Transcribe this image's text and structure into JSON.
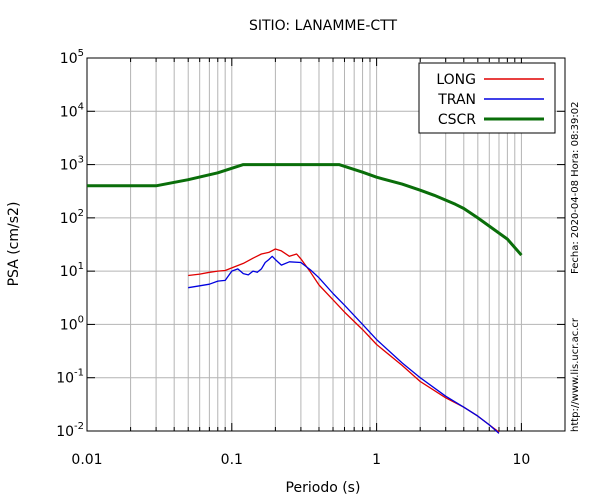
{
  "chart_data": {
    "type": "line",
    "title": "SITIO: LANAMME-CTT",
    "xlabel": "Periodo (s)",
    "ylabel": "PSA (cm/s2)",
    "xscale": "log",
    "yscale": "log",
    "xlim": [
      0.01,
      20
    ],
    "ylim": [
      0.01,
      100000
    ],
    "x_tick_labels": [
      "0.01",
      "0.1",
      "1",
      "10"
    ],
    "y_tick_labels": [
      {
        "base": "10",
        "exp": "5"
      },
      {
        "base": "10",
        "exp": "4"
      },
      {
        "base": "10",
        "exp": "3"
      },
      {
        "base": "10",
        "exp": "2"
      },
      {
        "base": "10",
        "exp": "1"
      },
      {
        "base": "10",
        "exp": "0"
      },
      {
        "base": "10",
        "exp": "-1"
      },
      {
        "base": "10",
        "exp": "-2"
      }
    ],
    "grid": true,
    "legend_position": "top-right",
    "series": [
      {
        "name": "LONG",
        "color": "#e00000",
        "x": [
          0.05,
          0.06,
          0.07,
          0.08,
          0.09,
          0.1,
          0.12,
          0.14,
          0.16,
          0.18,
          0.2,
          0.22,
          0.25,
          0.28,
          0.3,
          0.35,
          0.4,
          0.5,
          0.6,
          0.8,
          1.0,
          1.5,
          2.0,
          3.0,
          4.0,
          5.0,
          6.0,
          7.0
        ],
        "y": [
          8.3,
          8.8,
          9.5,
          10.0,
          10.3,
          11.5,
          14.0,
          17.5,
          21.0,
          22.5,
          26.0,
          24.0,
          19.0,
          21.0,
          17.0,
          9.5,
          5.5,
          2.9,
          1.7,
          0.8,
          0.42,
          0.17,
          0.085,
          0.042,
          0.028,
          0.019,
          0.013,
          0.0095
        ]
      },
      {
        "name": "TRAN",
        "color": "#0000e0",
        "x": [
          0.05,
          0.06,
          0.07,
          0.08,
          0.09,
          0.1,
          0.11,
          0.12,
          0.13,
          0.14,
          0.15,
          0.16,
          0.17,
          0.18,
          0.19,
          0.2,
          0.22,
          0.25,
          0.3,
          0.35,
          0.4,
          0.5,
          0.6,
          0.8,
          1.0,
          1.5,
          2.0,
          3.0,
          4.0,
          5.0,
          6.0,
          7.0
        ],
        "y": [
          4.9,
          5.3,
          5.7,
          6.5,
          6.7,
          10.0,
          11.0,
          9.0,
          8.5,
          10.0,
          9.5,
          11.0,
          14.5,
          16.5,
          19.0,
          16.5,
          13.0,
          15.0,
          14.5,
          10.5,
          7.5,
          3.8,
          2.3,
          1.0,
          0.52,
          0.19,
          0.1,
          0.045,
          0.028,
          0.019,
          0.013,
          0.009
        ]
      },
      {
        "name": "CSCR",
        "color": "#0a6e0a",
        "x": [
          0.01,
          0.03,
          0.05,
          0.08,
          0.12,
          0.2,
          0.3,
          0.55,
          0.8,
          1.0,
          1.5,
          2.0,
          2.5,
          3.0,
          3.5,
          4.0,
          5.0,
          6.0,
          8.0,
          10.0
        ],
        "y": [
          400,
          400,
          520,
          700,
          1000,
          1000,
          1000,
          1000,
          720,
          580,
          430,
          330,
          265,
          215,
          180,
          150,
          100,
          70,
          40,
          20
        ]
      }
    ],
    "side_texts": {
      "timestamp": "Fecha: 2020-04-08 Hora: 08:39:02",
      "url": "http://www.lis.ucr.ac.cr"
    }
  }
}
